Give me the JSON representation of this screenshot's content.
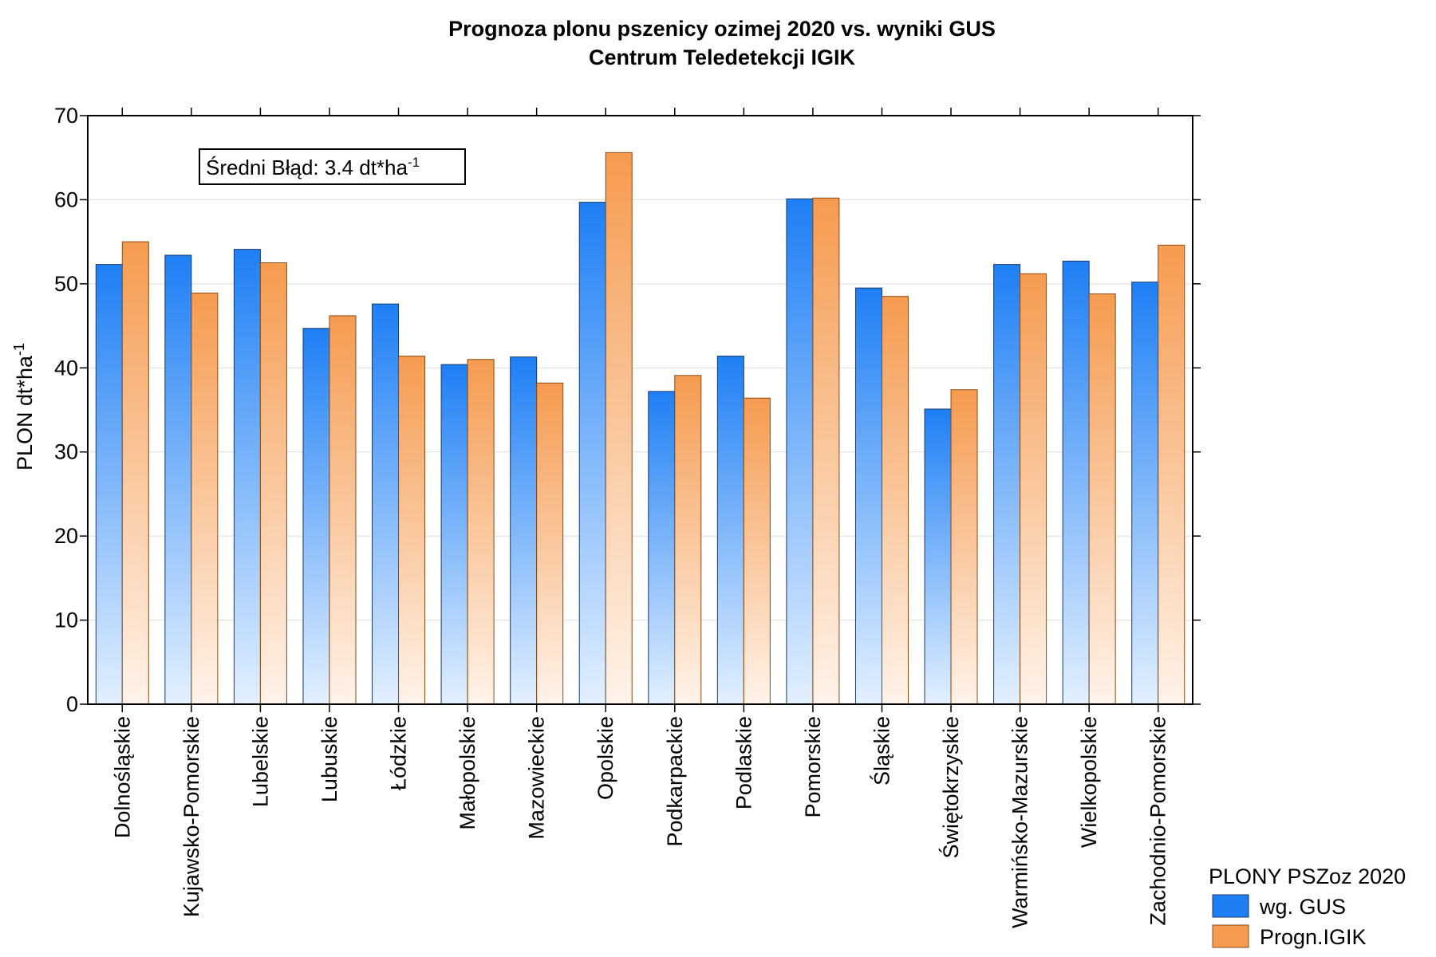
{
  "chart_data": {
    "type": "bar",
    "title": "Prognoza plonu pszenicy ozimej 2020 vs. wyniki GUS",
    "subtitle": "Centrum Teledetekcji IGIK",
    "ylabel_base": "PLON dt*ha",
    "ylabel_sup": "-1",
    "xlabel": "",
    "ylim": [
      0,
      70
    ],
    "yticks": [
      0,
      10,
      20,
      30,
      40,
      50,
      60,
      70
    ],
    "grid": true,
    "annotation_base": "Średni Błąd: 3.4 dt*ha",
    "annotation_sup": "-1",
    "legend_title": "PLONY PSZoz 2020",
    "legend_position": "bottom-right",
    "categories": [
      "Dolnośląskie",
      "Kujawsko-Pomorskie",
      "Lubelskie",
      "Lubuskie",
      "Łódzkie",
      "Małopolskie",
      "Mazowieckie",
      "Opolskie",
      "Podkarpackie",
      "Podlaskie",
      "Pomorskie",
      "Śląskie",
      "Świętokrzyskie",
      "Warmińsko-Mazurskie",
      "Wielkopolskie",
      "Zachodnio-Pomorskie"
    ],
    "series": [
      {
        "name": "wg. GUS",
        "color": "#1e7ff5",
        "color_light": "#e3f0ff",
        "values": [
          52.3,
          53.4,
          54.1,
          44.7,
          47.6,
          40.4,
          41.3,
          59.7,
          37.2,
          41.4,
          60.1,
          49.5,
          35.1,
          52.3,
          52.7,
          50.2
        ]
      },
      {
        "name": "Progn.IGIK",
        "color": "#f59b50",
        "color_light": "#fff3ea",
        "values": [
          55.0,
          48.9,
          52.5,
          46.2,
          41.4,
          41.0,
          38.2,
          65.6,
          39.1,
          36.4,
          60.2,
          48.5,
          37.4,
          51.2,
          48.8,
          54.6
        ]
      }
    ]
  }
}
